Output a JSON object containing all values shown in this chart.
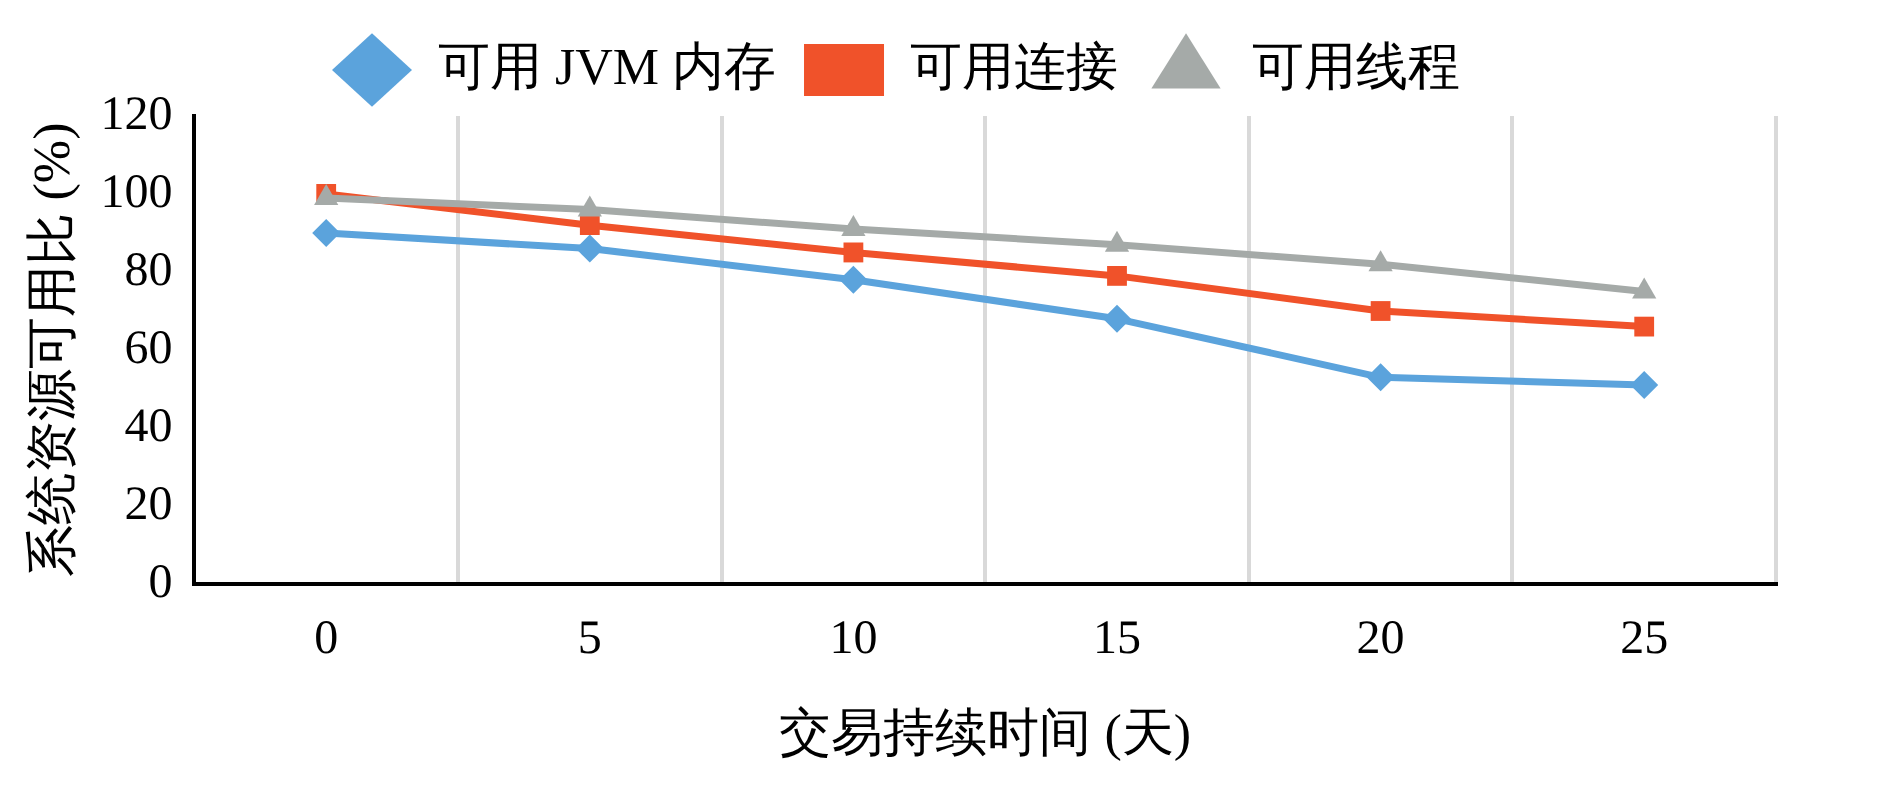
{
  "chart_data": {
    "type": "line",
    "xlabel": "交易持续时间 (天)",
    "ylabel": "系统资源可用比 (%)",
    "categories": [
      "0",
      "5",
      "10",
      "15",
      "20",
      "25"
    ],
    "series": [
      {
        "name": "可用 JVM 内存",
        "color": "#5ba3dc",
        "marker": "diamond",
        "values": [
          90,
          86,
          78,
          68,
          53,
          51
        ]
      },
      {
        "name": "可用连接",
        "color": "#f0522a",
        "marker": "square",
        "values": [
          100,
          92,
          85,
          79,
          70,
          66
        ]
      },
      {
        "name": "可用线程",
        "color": "#a5aaa8",
        "marker": "triangle",
        "values": [
          99,
          96,
          91,
          87,
          82,
          75
        ]
      }
    ],
    "ylim": [
      0,
      120
    ],
    "yticks": [
      0,
      20,
      40,
      60,
      80,
      100,
      120
    ],
    "grid": "x",
    "legend": "top",
    "line_style": "solid"
  }
}
